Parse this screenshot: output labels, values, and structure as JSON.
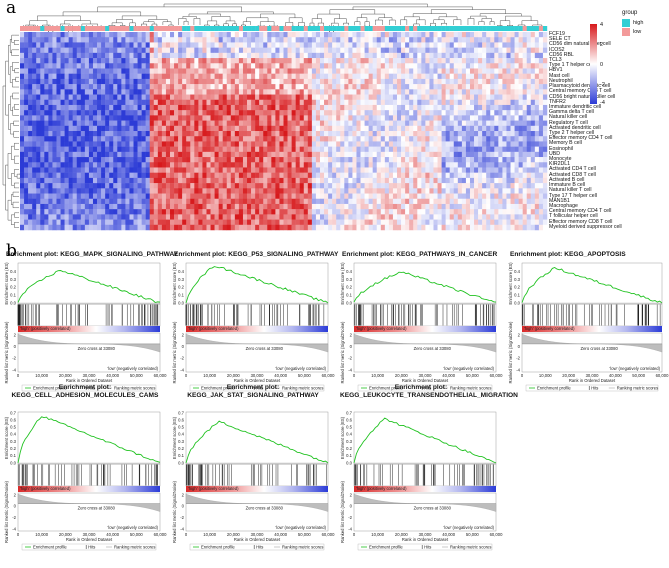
{
  "figure": {
    "panel_a_label": "a",
    "panel_b_label": "b"
  },
  "heatmap": {
    "legend_group_title": "group",
    "legend_groups": [
      {
        "label": "high",
        "color": "#33cfd4"
      },
      {
        "label": "low",
        "color": "#f39a9a"
      }
    ],
    "colorbar_ticks": [
      "4",
      "2",
      "0",
      "-2",
      "-4"
    ],
    "colorbar_colors": {
      "high": "#d7191c",
      "mid": "#ffffff",
      "low": "#2c3bd6"
    },
    "rows": [
      "FCF19",
      "SELE CT",
      "CD56 dim natural killer cell",
      "ICOS2",
      "CD56 RBL",
      "TCL3",
      "Type 1 T helper cell",
      "HBV1",
      "Mast cell",
      "Neutrophil",
      "Plasmacytoid dendritic cell",
      "Central memory CD8 T cell",
      "CD56 bright natural killer cell",
      "TNFR2",
      "Immature dendritic cell",
      "Gamma delta T cell",
      "Natural killer cell",
      "Regulatory T cell",
      "Activated dendritic cell",
      "Type 2 T helper cell",
      "Effector memory CD4 T cell",
      "Memory B cell",
      "Eosinophil",
      "UBD",
      "Monocyte",
      "KIR2DL1",
      "Activated CD4 T cell",
      "Activated CD8 T cell",
      "Activated B cell",
      "Immature B cell",
      "Natural killer T cell",
      "Type 17 T helper cell",
      "MAN1B1",
      "Macrophage",
      "Central memory CD4 T cell",
      "T follicular helper cell",
      "Effector memory CD8 T cell",
      "Myeloid derived suppressor cell"
    ]
  },
  "gsea_common": {
    "plot_title_prefix": "Enrichment plot:",
    "es_axis": "Enrichment score (ES)",
    "rank_axis": "Ranked list metric (Signal2Noise)",
    "x_axis": "Rank in Ordered Dataset",
    "high_label": "'high' (positively correlated)",
    "low_label": "'low' (negatively correlated)",
    "zero_cross": "Zero cross at 33080",
    "legend": [
      "Enrichment profile",
      "Hits",
      "Ranking metric scores"
    ],
    "x_ticks": [
      "0",
      "10,000",
      "20,000",
      "30,000",
      "40,000",
      "50,000",
      "60,000"
    ],
    "es_ticks": [
      "0.4",
      "0.3",
      "0.2",
      "0.1",
      "0.0"
    ],
    "es_ticks_7": [
      "0.7",
      "0.6",
      "0.5",
      "0.4",
      "0.3",
      "0.2",
      "0.1",
      "0.0"
    ],
    "rank_ticks": [
      "2",
      "0",
      "-2",
      "-4"
    ]
  },
  "gsea_plots": [
    {
      "title": "Enrichment plot: KEGG_MAPK_SIGNALING_PATHWAY",
      "peak_rank": 18000,
      "peak_es": 0.42
    },
    {
      "title": "Enrichment plot: KEGG_P53_SIGNALING_PATHWAY",
      "peak_rank": 12000,
      "peak_es": 0.48
    },
    {
      "title": "Enrichment plot: KEGG_PATHWAYS_IN_CANCER",
      "peak_rank": 20000,
      "peak_es": 0.4
    },
    {
      "title": "Enrichment plot: KEGG_APOPTOSIS",
      "peak_rank": 14000,
      "peak_es": 0.45
    },
    {
      "title": "Enrichment plot:\nKEGG_CELL_ADHESION_MOLECULES_CAMS",
      "peak_rank": 10000,
      "peak_es": 0.66
    },
    {
      "title": "Enrichment plot:\nKEGG_JAK_STAT_SIGNALING_PATHWAY",
      "peak_rank": 14000,
      "peak_es": 0.58
    },
    {
      "title": "Enrichment plot:\nKEGG_LEUKOCYTE_TRANSENDOTHELIAL_MIGRATION",
      "peak_rank": 13000,
      "peak_es": 0.62
    }
  ]
}
